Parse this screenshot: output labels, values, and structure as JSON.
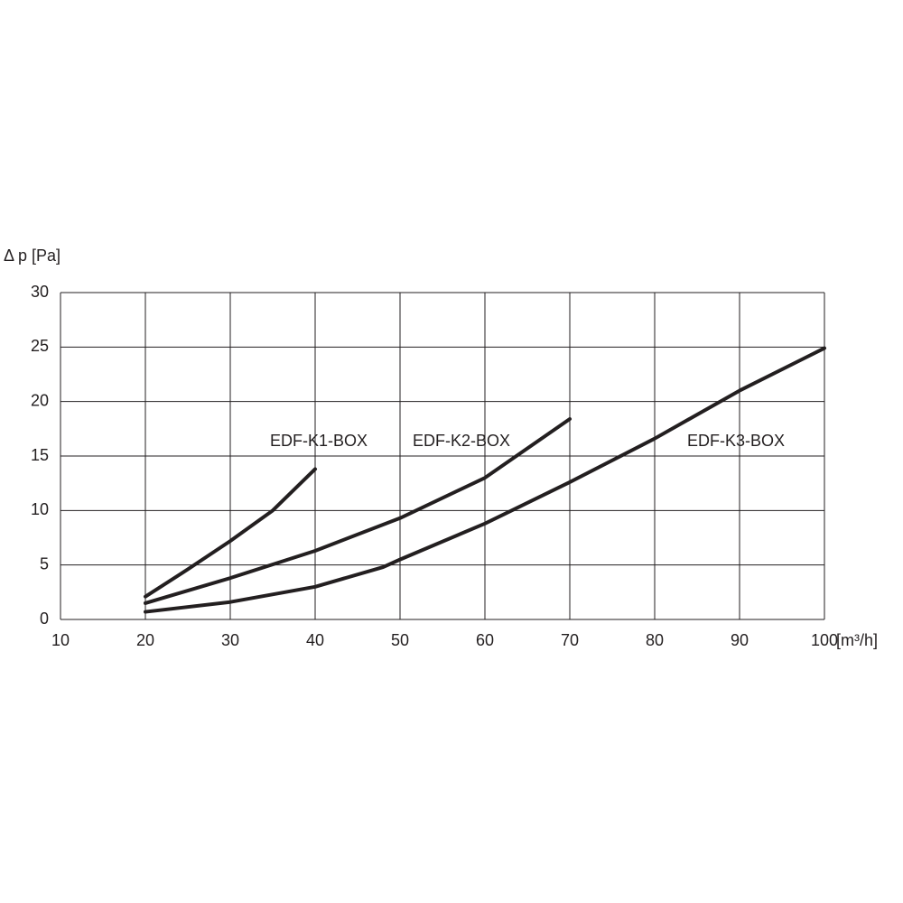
{
  "chart_data": {
    "type": "line",
    "y_label": "Δ p [Pa]",
    "x_label": "[m³/h]",
    "xlim": [
      10,
      100
    ],
    "xticks": [
      10,
      20,
      30,
      40,
      50,
      60,
      70,
      80,
      90,
      100
    ],
    "ylim": [
      0,
      30
    ],
    "yticks": [
      0,
      5,
      10,
      15,
      20,
      25,
      30
    ],
    "grid": true,
    "series": [
      {
        "name": "EDF-K1-BOX",
        "color": "#231f20",
        "x": [
          20,
          25,
          30,
          35,
          40
        ],
        "values": [
          2.1,
          4.6,
          7.2,
          10.0,
          13.8
        ]
      },
      {
        "name": "EDF-K2-BOX",
        "color": "#231f20",
        "x": [
          20,
          30,
          40,
          50,
          60,
          70
        ],
        "values": [
          1.5,
          3.8,
          6.3,
          9.3,
          13.0,
          18.4
        ]
      },
      {
        "name": "EDF-K3-BOX",
        "color": "#231f20",
        "x": [
          20,
          30,
          40,
          48,
          50,
          60,
          70,
          80,
          90,
          100
        ],
        "values": [
          0.7,
          1.6,
          3.0,
          4.8,
          5.5,
          8.8,
          12.6,
          16.6,
          21.0,
          24.9
        ]
      }
    ]
  }
}
